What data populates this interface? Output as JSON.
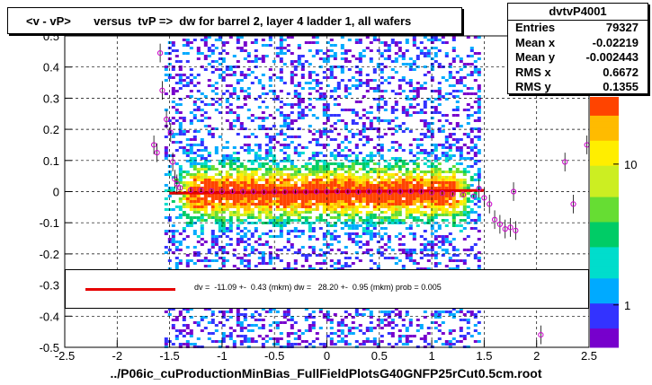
{
  "title": "<v - vP>       versus  tvP =>  dw for barrel 2, layer 4 ladder 1, all wafers",
  "xlabel": "../P06ic_cuProductionMinBias_FullFieldPlotsG40GNFP25rCut0.5cm.root",
  "stats": {
    "name": "dvtvP4001",
    "rows": [
      {
        "label": "Entries",
        "value": "79327"
      },
      {
        "label": "Mean x",
        "value": "-0.02219"
      },
      {
        "label": "Mean y",
        "value": "-0.002443"
      },
      {
        "label": "RMS x",
        "value": "0.6672"
      },
      {
        "label": "RMS y",
        "value": "0.1355"
      }
    ]
  },
  "fit_text": "dv =  -11.09 +-  0.43 (mkm) dw =   28.20 +-  0.95 (mkm) prob = 0.005",
  "colors": {
    "fit_line": "#e60000",
    "profile_markers": "#cc00cc",
    "frame": "#000000"
  },
  "chart_data": {
    "type": "heatmap",
    "title": "<v - vP>       versus  tvP =>  dw for barrel 2, layer 4 ladder 1, all wafers",
    "xlabel": "../P06ic_cuProductionMinBias_FullFieldPlotsG40GNFP25rCut0.5cm.root",
    "ylabel": "",
    "xlim": [
      -2.5,
      2.5
    ],
    "ylim": [
      -0.5,
      0.5
    ],
    "x_ticks": [
      "-2.5",
      "-2",
      "-1.5",
      "-1",
      "-0.5",
      "0",
      "0.5",
      "1",
      "1.5",
      "2",
      "2.5"
    ],
    "y_ticks": [
      "-0.5",
      "-0.4",
      "-0.3",
      "-0.2",
      "-0.1",
      "0",
      "0.1",
      "0.2",
      "0.3",
      "0.4",
      "0.5"
    ],
    "x_tick_values": [
      -2.5,
      -2,
      -1.5,
      -1,
      -0.5,
      0,
      0.5,
      1,
      1.5,
      2,
      2.5
    ],
    "y_tick_values": [
      -0.5,
      -0.4,
      -0.3,
      -0.2,
      -0.1,
      0,
      0.1,
      0.2,
      0.3,
      0.4,
      0.5
    ],
    "grid": true,
    "colorbar_ticks": [
      "1",
      "10"
    ],
    "colorbar_tick_values": [
      1,
      10
    ],
    "colorbar_scale": "log",
    "heatmap_x_range": [
      -1.55,
      1.45
    ],
    "fit": {
      "x_range": [
        -1.5,
        1.5
      ],
      "y_at_start": -0.005,
      "y_at_end": 0.004
    },
    "profile_points": [
      {
        "x": -1.59,
        "y": 0.445
      },
      {
        "x": -1.57,
        "y": 0.325
      },
      {
        "x": -1.53,
        "y": 0.232
      },
      {
        "x": -1.49,
        "y": 0.19
      },
      {
        "x": -1.65,
        "y": 0.15
      },
      {
        "x": -1.62,
        "y": 0.125
      },
      {
        "x": -1.47,
        "y": 0.095
      },
      {
        "x": -1.45,
        "y": 0.04
      },
      {
        "x": -1.43,
        "y": 0.025
      },
      {
        "x": -1.4,
        "y": 0.012
      },
      {
        "x": -1.3,
        "y": 0.005
      },
      {
        "x": -1.2,
        "y": 0.004
      },
      {
        "x": -1.1,
        "y": 0.002
      },
      {
        "x": -1.0,
        "y": 0.001
      },
      {
        "x": -0.9,
        "y": 0.001
      },
      {
        "x": -0.8,
        "y": 0.0
      },
      {
        "x": -0.7,
        "y": 0.0
      },
      {
        "x": -0.6,
        "y": -0.001
      },
      {
        "x": -0.5,
        "y": 0.0
      },
      {
        "x": -0.4,
        "y": -0.001
      },
      {
        "x": -0.3,
        "y": 0.0
      },
      {
        "x": -0.2,
        "y": -0.001
      },
      {
        "x": -0.1,
        "y": 0.0
      },
      {
        "x": 0.0,
        "y": 0.0
      },
      {
        "x": 0.1,
        "y": 0.001
      },
      {
        "x": 0.2,
        "y": 0.0
      },
      {
        "x": 0.3,
        "y": -0.001
      },
      {
        "x": 0.4,
        "y": 0.0
      },
      {
        "x": 0.5,
        "y": 0.0
      },
      {
        "x": 0.6,
        "y": -0.001
      },
      {
        "x": 0.7,
        "y": 0.0
      },
      {
        "x": 0.8,
        "y": 0.001
      },
      {
        "x": 0.9,
        "y": 0.0
      },
      {
        "x": 1.0,
        "y": -0.003
      },
      {
        "x": 1.1,
        "y": -0.005
      },
      {
        "x": 1.2,
        "y": -0.008
      },
      {
        "x": 1.3,
        "y": -0.01
      },
      {
        "x": 1.4,
        "y": -0.015
      },
      {
        "x": 1.45,
        "y": 0.01
      },
      {
        "x": 1.5,
        "y": -0.02
      },
      {
        "x": 1.55,
        "y": -0.04
      },
      {
        "x": 1.6,
        "y": -0.09
      },
      {
        "x": 1.65,
        "y": -0.105
      },
      {
        "x": 1.7,
        "y": -0.12
      },
      {
        "x": 1.75,
        "y": -0.115
      },
      {
        "x": 1.8,
        "y": -0.125
      },
      {
        "x": 1.78,
        "y": 0.0
      },
      {
        "x": 2.27,
        "y": 0.095
      },
      {
        "x": 2.35,
        "y": -0.04
      },
      {
        "x": 2.48,
        "y": 0.15
      },
      {
        "x": 2.04,
        "y": -0.46
      }
    ]
  }
}
